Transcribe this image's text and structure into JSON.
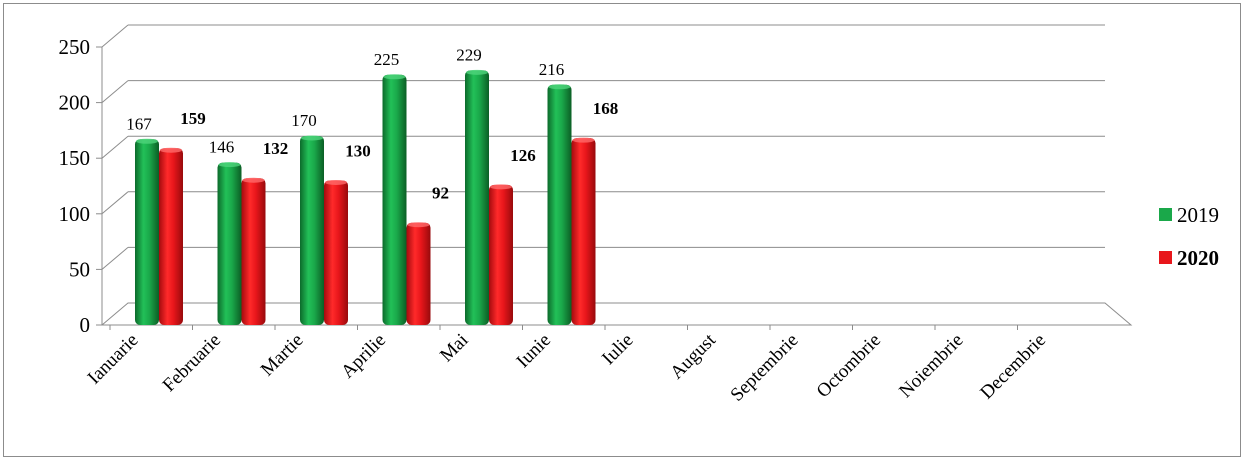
{
  "chart_data": {
    "type": "bar",
    "categories": [
      "Ianuarie",
      "Februarie",
      "Martie",
      "Aprilie",
      "Mai",
      "Iunie",
      "Iulie",
      "August",
      "Septembrie",
      "Octombrie",
      "Noiembrie",
      "Decembrie"
    ],
    "series": [
      {
        "name": "2019",
        "values": [
          167,
          146,
          170,
          225,
          229,
          216,
          null,
          null,
          null,
          null,
          null,
          null
        ],
        "color": "#1aa84a"
      },
      {
        "name": "2020",
        "values": [
          159,
          132,
          130,
          92,
          126,
          168,
          null,
          null,
          null,
          null,
          null,
          null
        ],
        "color": "#e8161b"
      }
    ],
    "ylim": [
      0,
      250
    ],
    "yticks": [
      0,
      50,
      100,
      150,
      200,
      250
    ],
    "grid": true,
    "legend": "right",
    "style": "3d-cylinder"
  }
}
